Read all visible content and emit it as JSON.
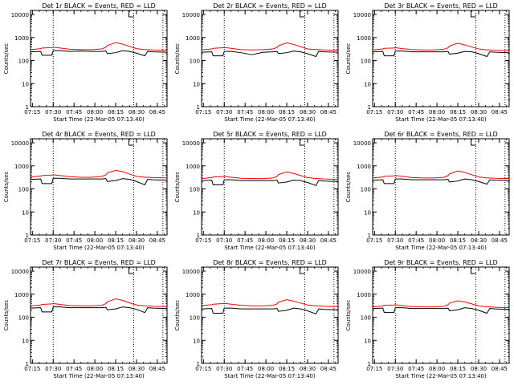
{
  "figure": {
    "start_time_label": "Start Time (22-Mar-05 07:13:40)",
    "ylabel": "Counts/sec",
    "x_tick_labels": [
      "07:15",
      "07:30",
      "07:45",
      "08:00",
      "08:15",
      "08:30",
      "08:45"
    ],
    "y_tick_labels": [
      "1",
      "10",
      "100",
      "1000",
      "10000"
    ],
    "colors": {
      "events": "#000000",
      "lld": "#ff0000",
      "background": "#ffffff"
    }
  },
  "chart_data": [
    {
      "type": "line",
      "title": "Det 1r BLACK = Events, RED = LLD",
      "xlabel": "Start Time (22-Mar-05 07:13:40)",
      "ylabel": "Counts/sec",
      "x_unit": "time (HH:MM)",
      "xlim": [
        "07:13:40",
        "08:52:00"
      ],
      "ylim": [
        1,
        15000
      ],
      "y_scale": "log",
      "x_ticks": [
        "07:15",
        "07:30",
        "07:45",
        "08:00",
        "08:15",
        "08:30",
        "08:45"
      ],
      "y_ticks": [
        1,
        10,
        100,
        1000,
        10000
      ],
      "vlines": [
        "07:30",
        "08:28",
        "08:49"
      ],
      "x": [
        "07:13:40",
        "07:21",
        "07:22",
        "07:29",
        "07:30",
        "07:35",
        "07:42",
        "07:50",
        "07:58",
        "08:05",
        "08:08",
        "08:09",
        "08:15",
        "08:20",
        "08:25",
        "08:30",
        "08:36",
        "08:38",
        "08:42",
        "08:52"
      ],
      "series": [
        {
          "name": "Events",
          "color": "#000000",
          "values": [
            240,
            250,
            170,
            170,
            270,
            270,
            250,
            260,
            250,
            250,
            260,
            200,
            220,
            270,
            250,
            210,
            160,
            250,
            240,
            230
          ]
        },
        {
          "name": "LLD",
          "color": "#ff0000",
          "values": [
            300,
            330,
            350,
            370,
            380,
            350,
            310,
            300,
            300,
            320,
            380,
            450,
            600,
            520,
            410,
            330,
            300,
            300,
            290,
            280
          ]
        }
      ]
    },
    {
      "type": "line",
      "title": "Det 2r BLACK = Events, RED = LLD",
      "xlabel": "Start Time (22-Mar-05 07:13:40)",
      "ylabel": "Counts/sec",
      "x_unit": "time (HH:MM)",
      "xlim": [
        "07:13:40",
        "08:52:00"
      ],
      "ylim": [
        1,
        15000
      ],
      "y_scale": "log",
      "x_ticks": [
        "07:15",
        "07:30",
        "07:45",
        "08:00",
        "08:15",
        "08:30",
        "08:45"
      ],
      "y_ticks": [
        1,
        10,
        100,
        1000,
        10000
      ],
      "vlines": [
        "07:30",
        "08:28",
        "08:49"
      ],
      "x": [
        "07:13:40",
        "07:21",
        "07:22",
        "07:29",
        "07:30",
        "07:35",
        "07:42",
        "07:50",
        "07:58",
        "08:05",
        "08:08",
        "08:09",
        "08:15",
        "08:20",
        "08:25",
        "08:30",
        "08:36",
        "08:38",
        "08:42",
        "08:52"
      ],
      "series": [
        {
          "name": "Events",
          "color": "#000000",
          "values": [
            230,
            240,
            160,
            160,
            250,
            250,
            220,
            180,
            230,
            240,
            250,
            200,
            220,
            260,
            240,
            200,
            150,
            250,
            240,
            230
          ]
        },
        {
          "name": "LLD",
          "color": "#ff0000",
          "values": [
            290,
            320,
            340,
            360,
            370,
            340,
            300,
            290,
            300,
            320,
            370,
            440,
            590,
            500,
            400,
            320,
            300,
            300,
            290,
            280
          ]
        }
      ]
    },
    {
      "type": "line",
      "title": "Det 3r BLACK = Events, RED = LLD",
      "xlabel": "Start Time (22-Mar-05 07:13:40)",
      "ylabel": "Counts/sec",
      "x_unit": "time (HH:MM)",
      "xlim": [
        "07:13:40",
        "08:52:00"
      ],
      "ylim": [
        1,
        15000
      ],
      "y_scale": "log",
      "x_ticks": [
        "07:15",
        "07:30",
        "07:45",
        "08:00",
        "08:15",
        "08:30",
        "08:45"
      ],
      "y_ticks": [
        1,
        10,
        100,
        1000,
        10000
      ],
      "vlines": [
        "07:30",
        "08:28",
        "08:49"
      ],
      "x": [
        "07:13:40",
        "07:21",
        "07:22",
        "07:29",
        "07:30",
        "07:35",
        "07:42",
        "07:50",
        "07:58",
        "08:05",
        "08:08",
        "08:09",
        "08:15",
        "08:20",
        "08:25",
        "08:30",
        "08:36",
        "08:38",
        "08:42",
        "08:52"
      ],
      "series": [
        {
          "name": "Events",
          "color": "#000000",
          "values": [
            240,
            250,
            160,
            160,
            260,
            260,
            240,
            240,
            240,
            240,
            250,
            190,
            210,
            250,
            240,
            200,
            150,
            240,
            230,
            220
          ]
        },
        {
          "name": "LLD",
          "color": "#ff0000",
          "values": [
            290,
            320,
            340,
            350,
            360,
            330,
            300,
            290,
            290,
            310,
            360,
            430,
            560,
            480,
            390,
            320,
            290,
            290,
            280,
            270
          ]
        }
      ]
    },
    {
      "type": "line",
      "title": "Det 4r BLACK = Events, RED = LLD",
      "xlabel": "Start Time (22-Mar-05 07:13:40)",
      "ylabel": "Counts/sec",
      "x_unit": "time (HH:MM)",
      "xlim": [
        "07:13:40",
        "08:52:00"
      ],
      "ylim": [
        1,
        15000
      ],
      "y_scale": "log",
      "x_ticks": [
        "07:15",
        "07:30",
        "07:45",
        "08:00",
        "08:15",
        "08:30",
        "08:45"
      ],
      "y_ticks": [
        1,
        10,
        100,
        1000,
        10000
      ],
      "vlines": [
        "07:30",
        "08:28",
        "08:49"
      ],
      "x": [
        "07:13:40",
        "07:21",
        "07:22",
        "07:29",
        "07:30",
        "07:35",
        "07:42",
        "07:50",
        "07:58",
        "08:05",
        "08:08",
        "08:09",
        "08:15",
        "08:20",
        "08:25",
        "08:30",
        "08:36",
        "08:38",
        "08:42",
        "08:52"
      ],
      "series": [
        {
          "name": "Events",
          "color": "#000000",
          "values": [
            260,
            270,
            170,
            170,
            290,
            290,
            270,
            270,
            270,
            270,
            280,
            210,
            230,
            280,
            260,
            210,
            150,
            260,
            250,
            240
          ]
        },
        {
          "name": "LLD",
          "color": "#ff0000",
          "values": [
            330,
            360,
            380,
            400,
            410,
            380,
            340,
            320,
            320,
            350,
            410,
            490,
            640,
            560,
            440,
            350,
            320,
            320,
            310,
            300
          ]
        }
      ]
    },
    {
      "type": "line",
      "title": "Det 5r BLACK = Events, RED = LLD",
      "xlabel": "Start Time (22-Mar-05 07:13:40)",
      "ylabel": "Counts/sec",
      "x_unit": "time (HH:MM)",
      "xlim": [
        "07:13:40",
        "08:52:00"
      ],
      "ylim": [
        1,
        15000
      ],
      "y_scale": "log",
      "x_ticks": [
        "07:15",
        "07:30",
        "07:45",
        "08:00",
        "08:15",
        "08:30",
        "08:45"
      ],
      "y_ticks": [
        1,
        10,
        100,
        1000,
        10000
      ],
      "vlines": [
        "07:30",
        "08:28",
        "08:49"
      ],
      "x": [
        "07:13:40",
        "07:21",
        "07:22",
        "07:29",
        "07:30",
        "07:35",
        "07:42",
        "07:50",
        "07:58",
        "08:05",
        "08:08",
        "08:09",
        "08:15",
        "08:20",
        "08:25",
        "08:30",
        "08:36",
        "08:38",
        "08:42",
        "08:52"
      ],
      "series": [
        {
          "name": "Events",
          "color": "#000000",
          "values": [
            230,
            240,
            150,
            150,
            250,
            250,
            230,
            230,
            230,
            230,
            240,
            180,
            200,
            240,
            230,
            190,
            140,
            230,
            220,
            210
          ]
        },
        {
          "name": "LLD",
          "color": "#ff0000",
          "values": [
            280,
            310,
            330,
            340,
            350,
            320,
            290,
            280,
            280,
            300,
            350,
            420,
            550,
            470,
            380,
            310,
            280,
            280,
            270,
            260
          ]
        }
      ]
    },
    {
      "type": "line",
      "title": "Det 6r BLACK = Events, RED = LLD",
      "xlabel": "Start Time (22-Mar-05 07:13:40)",
      "ylabel": "Counts/sec",
      "x_unit": "time (HH:MM)",
      "xlim": [
        "07:13:40",
        "08:52:00"
      ],
      "ylim": [
        1,
        15000
      ],
      "y_scale": "log",
      "x_ticks": [
        "07:15",
        "07:30",
        "07:45",
        "08:00",
        "08:15",
        "08:30",
        "08:45"
      ],
      "y_ticks": [
        1,
        10,
        100,
        1000,
        10000
      ],
      "vlines": [
        "07:30",
        "08:28",
        "08:49"
      ],
      "x": [
        "07:13:40",
        "07:21",
        "07:22",
        "07:29",
        "07:30",
        "07:35",
        "07:42",
        "07:50",
        "07:58",
        "08:05",
        "08:08",
        "08:09",
        "08:15",
        "08:20",
        "08:25",
        "08:30",
        "08:36",
        "08:38",
        "08:42",
        "08:52"
      ],
      "series": [
        {
          "name": "Events",
          "color": "#000000",
          "values": [
            240,
            250,
            170,
            170,
            270,
            270,
            250,
            250,
            250,
            250,
            260,
            200,
            220,
            270,
            250,
            210,
            160,
            250,
            240,
            230
          ]
        },
        {
          "name": "LLD",
          "color": "#ff0000",
          "values": [
            300,
            330,
            350,
            370,
            380,
            350,
            310,
            300,
            300,
            320,
            380,
            450,
            600,
            520,
            410,
            330,
            300,
            300,
            290,
            280
          ]
        }
      ]
    },
    {
      "type": "line",
      "title": "Det 7r BLACK = Events, RED = LLD",
      "xlabel": "Start Time (22-Mar-05 07:13:40)",
      "ylabel": "Counts/sec",
      "x_unit": "time (HH:MM)",
      "xlim": [
        "07:13:40",
        "08:52:00"
      ],
      "ylim": [
        1,
        15000
      ],
      "y_scale": "log",
      "x_ticks": [
        "07:15",
        "07:30",
        "07:45",
        "08:00",
        "08:15",
        "08:30",
        "08:45"
      ],
      "y_ticks": [
        1,
        10,
        100,
        1000,
        10000
      ],
      "vlines": [
        "07:30",
        "08:28",
        "08:49"
      ],
      "x": [
        "07:13:40",
        "07:21",
        "07:22",
        "07:29",
        "07:30",
        "07:35",
        "07:42",
        "07:50",
        "07:58",
        "08:05",
        "08:08",
        "08:09",
        "08:15",
        "08:20",
        "08:25",
        "08:30",
        "08:36",
        "08:38",
        "08:42",
        "08:52"
      ],
      "series": [
        {
          "name": "Events",
          "color": "#000000",
          "values": [
            250,
            260,
            170,
            170,
            280,
            280,
            260,
            260,
            260,
            260,
            270,
            210,
            230,
            280,
            260,
            220,
            160,
            260,
            250,
            240
          ]
        },
        {
          "name": "LLD",
          "color": "#ff0000",
          "values": [
            310,
            340,
            360,
            380,
            390,
            360,
            320,
            310,
            310,
            330,
            390,
            470,
            630,
            540,
            420,
            340,
            310,
            310,
            300,
            290
          ]
        }
      ]
    },
    {
      "type": "line",
      "title": "Det 8r BLACK = Events, RED = LLD",
      "xlabel": "Start Time (22-Mar-05 07:13:40)",
      "ylabel": "Counts/sec",
      "x_unit": "time (HH:MM)",
      "xlim": [
        "07:13:40",
        "08:52:00"
      ],
      "ylim": [
        1,
        15000
      ],
      "y_scale": "log",
      "x_ticks": [
        "07:15",
        "07:30",
        "07:45",
        "08:00",
        "08:15",
        "08:30",
        "08:45"
      ],
      "y_ticks": [
        1,
        10,
        100,
        1000,
        10000
      ],
      "vlines": [
        "07:30",
        "08:28",
        "08:49"
      ],
      "x": [
        "07:13:40",
        "07:21",
        "07:22",
        "07:29",
        "07:30",
        "07:35",
        "07:42",
        "07:50",
        "07:58",
        "08:05",
        "08:08",
        "08:09",
        "08:15",
        "08:20",
        "08:25",
        "08:30",
        "08:36",
        "08:38",
        "08:42",
        "08:52"
      ],
      "series": [
        {
          "name": "Events",
          "color": "#000000",
          "values": [
            230,
            240,
            150,
            150,
            250,
            250,
            230,
            230,
            230,
            230,
            240,
            180,
            200,
            250,
            230,
            190,
            140,
            230,
            220,
            210
          ]
        },
        {
          "name": "LLD",
          "color": "#ff0000",
          "values": [
            320,
            350,
            370,
            390,
            400,
            370,
            330,
            310,
            310,
            330,
            380,
            450,
            580,
            500,
            410,
            340,
            310,
            310,
            300,
            290
          ]
        }
      ]
    },
    {
      "type": "line",
      "title": "Det 9r BLACK = Events, RED = LLD",
      "xlabel": "Start Time (22-Mar-05 07:13:40)",
      "ylabel": "Counts/sec",
      "x_unit": "time (HH:MM)",
      "xlim": [
        "07:13:40",
        "08:52:00"
      ],
      "ylim": [
        1,
        15000
      ],
      "y_scale": "log",
      "x_ticks": [
        "07:15",
        "07:30",
        "07:45",
        "08:00",
        "08:15",
        "08:30",
        "08:45"
      ],
      "y_ticks": [
        1,
        10,
        100,
        1000,
        10000
      ],
      "vlines": [
        "07:30",
        "08:28",
        "08:49"
      ],
      "x": [
        "07:13:40",
        "07:21",
        "07:22",
        "07:29",
        "07:30",
        "07:35",
        "07:42",
        "07:50",
        "07:58",
        "08:05",
        "08:08",
        "08:09",
        "08:15",
        "08:20",
        "08:25",
        "08:30",
        "08:36",
        "08:38",
        "08:42",
        "08:52"
      ],
      "series": [
        {
          "name": "Events",
          "color": "#000000",
          "values": [
            240,
            250,
            160,
            160,
            260,
            260,
            240,
            240,
            240,
            240,
            250,
            190,
            210,
            260,
            240,
            200,
            150,
            240,
            230,
            220
          ]
        },
        {
          "name": "LLD",
          "color": "#ff0000",
          "values": [
            280,
            310,
            330,
            340,
            350,
            320,
            290,
            280,
            280,
            300,
            350,
            410,
            520,
            460,
            380,
            310,
            280,
            280,
            270,
            260
          ]
        }
      ]
    }
  ]
}
